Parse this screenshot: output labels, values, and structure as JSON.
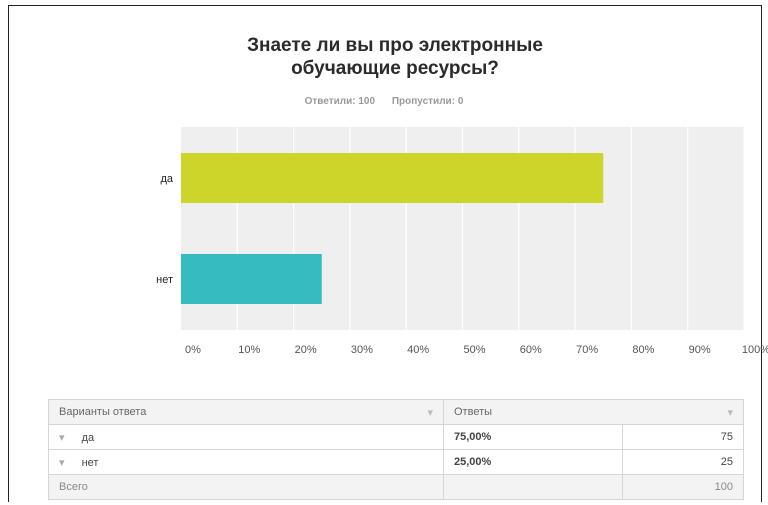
{
  "chart_data": {
    "type": "bar",
    "orientation": "horizontal",
    "title": "Знаете ли вы про электронные обучающие ресурсы?",
    "title_lines": [
      "Знаете ли вы про электронные",
      "обучающие ресурсы?"
    ],
    "answered": "Ответили: 100",
    "skipped": "Пропустили: 0",
    "categories": [
      "да",
      "нет"
    ],
    "values": [
      75,
      25
    ],
    "xlim": [
      0,
      100
    ],
    "x_ticks": [
      "0%",
      "10%",
      "20%",
      "30%",
      "40%",
      "50%",
      "60%",
      "70%",
      "80%",
      "90%",
      "100%"
    ],
    "bar_colors": [
      "#cdd52a",
      "#36bcc0"
    ],
    "grid": true
  },
  "table": {
    "header": {
      "options": "Варианты ответа",
      "responses": "Ответы"
    },
    "rows": [
      {
        "label": "да",
        "percent": "75,00%",
        "count": "75"
      },
      {
        "label": "нет",
        "percent": "25,00%",
        "count": "25"
      }
    ],
    "total": {
      "label": "Всего",
      "count": "100"
    }
  }
}
